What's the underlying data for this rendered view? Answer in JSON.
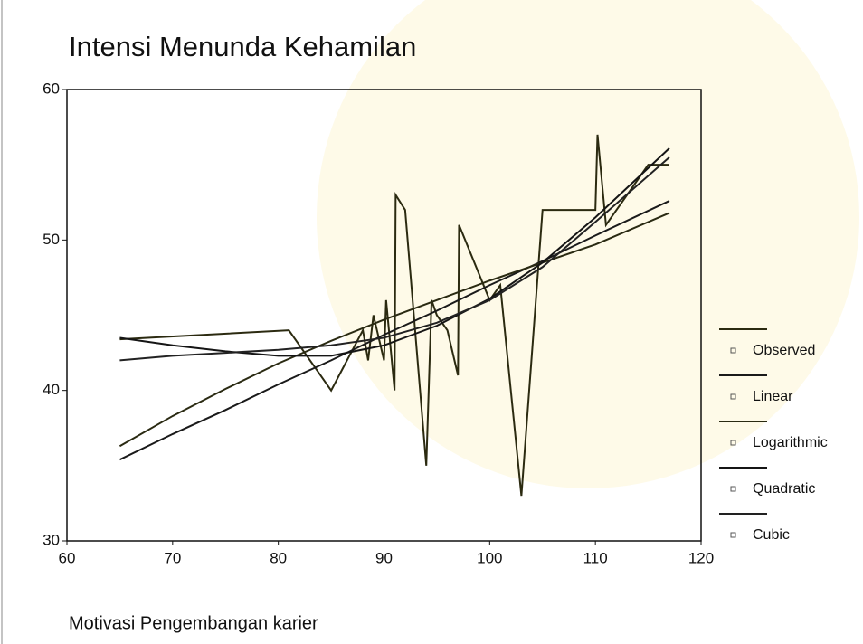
{
  "chart_data": {
    "type": "line",
    "title": "Intensi Menunda Kehamilan",
    "x_label": "Motivasi Pengembangan karier",
    "xlim": [
      60,
      120
    ],
    "xticks": [
      60,
      70,
      80,
      90,
      100,
      110,
      120
    ],
    "ylim": [
      30,
      60
    ],
    "yticks": [
      30,
      40,
      50,
      60
    ],
    "series": [
      {
        "name": "Observed",
        "color": "#2b2a10",
        "x": [
          65,
          81,
          85,
          88,
          88.5,
          89,
          90,
          90.2,
          91,
          91.1,
          92,
          94,
          94.5,
          95,
          96,
          97,
          97.1,
          100,
          101,
          103,
          105,
          106,
          110,
          110.2,
          111,
          115,
          117
        ],
        "values": [
          43.4,
          44,
          40,
          44,
          42,
          45,
          42,
          46,
          40,
          53,
          52,
          35,
          46,
          45,
          44,
          41,
          51,
          46,
          47,
          33,
          52,
          52,
          52,
          57,
          51,
          55,
          55
        ]
      },
      {
        "name": "Linear",
        "color": "#1a1a1a",
        "x": [
          65,
          70,
          75,
          80,
          85,
          90,
          95,
          100,
          105,
          110,
          117
        ],
        "values": [
          35.4,
          37.1,
          38.7,
          40.4,
          42.0,
          43.7,
          45.3,
          47.0,
          48.6,
          50.3,
          52.6
        ]
      },
      {
        "name": "Logarithmic",
        "color": "#2a2a12",
        "x": [
          65,
          70,
          75,
          80,
          85,
          90,
          95,
          100,
          105,
          110,
          117
        ],
        "values": [
          36.3,
          38.3,
          40.1,
          41.8,
          43.3,
          44.7,
          46.0,
          47.3,
          48.5,
          49.7,
          51.8
        ]
      },
      {
        "name": "Quadratic",
        "color": "#151515",
        "x": [
          65,
          70,
          75,
          80,
          85,
          90,
          95,
          100,
          105,
          110,
          117
        ],
        "values": [
          43.5,
          43.0,
          42.6,
          42.3,
          42.3,
          43.0,
          44.3,
          46.1,
          48.5,
          51.5,
          56.1
        ]
      },
      {
        "name": "Cubic",
        "color": "#222222",
        "x": [
          65,
          70,
          75,
          80,
          85,
          90,
          95,
          100,
          105,
          110,
          117
        ],
        "values": [
          42.0,
          42.3,
          42.5,
          42.7,
          43.0,
          43.5,
          44.5,
          46.0,
          48.2,
          51.2,
          55.5
        ]
      }
    ]
  }
}
